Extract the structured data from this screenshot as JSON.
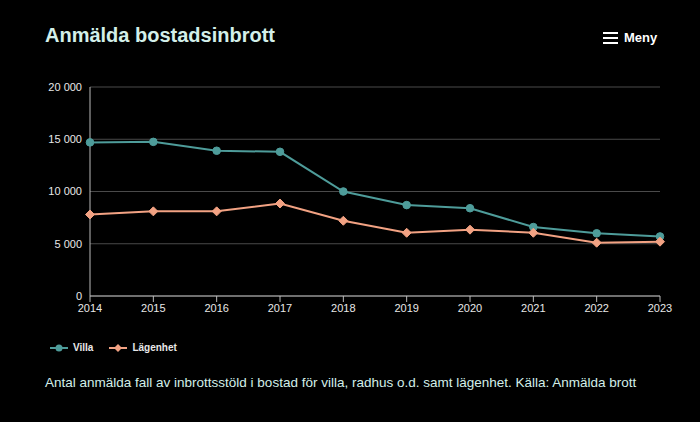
{
  "chart_data": {
    "type": "line",
    "title": "Anmälda bostadsinbrott",
    "menu": "Meny",
    "caption": "Antal anmälda fall av inbrottsstöld i bostad för villa, radhus o.d. samt lägenhet. Källa: Anmälda brott",
    "categories": [
      "2014",
      "2015",
      "2016",
      "2017",
      "2018",
      "2019",
      "2020",
      "2021",
      "2022",
      "2023"
    ],
    "series": [
      {
        "name": "Villa",
        "color": "#4e9c9a",
        "marker": "circle",
        "values": [
          14700,
          14750,
          13900,
          13800,
          10000,
          8700,
          8400,
          6600,
          6000,
          5700
        ]
      },
      {
        "name": "Lägenhet",
        "color": "#f2a283",
        "marker": "diamond",
        "values": [
          7800,
          8100,
          8100,
          8850,
          7200,
          6050,
          6350,
          6050,
          5100,
          5200
        ]
      }
    ],
    "ylim": [
      0,
      20000
    ],
    "yticks": [
      0,
      {
        "value": 5000,
        "label": "5 000"
      },
      {
        "value": 10000,
        "label": "10 000"
      },
      {
        "value": 15000,
        "label": "15 000"
      },
      {
        "value": 20000,
        "label": "20 000"
      }
    ],
    "grid": true,
    "legend": "bottom-left"
  }
}
